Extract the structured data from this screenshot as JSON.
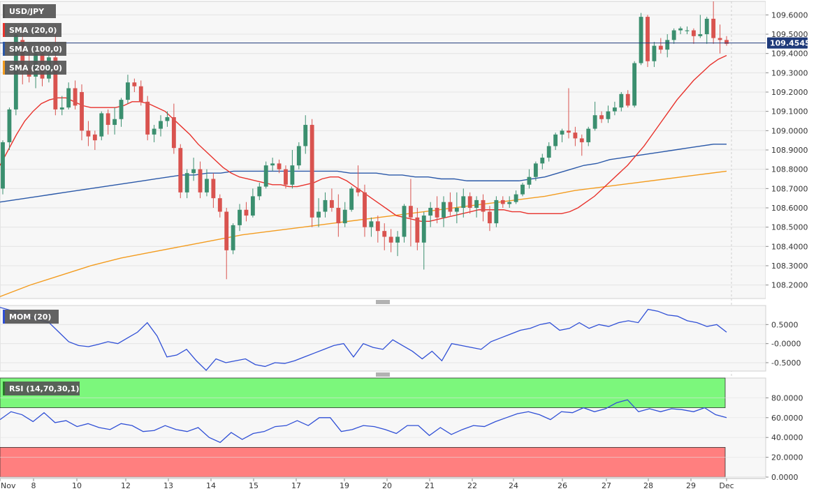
{
  "chart_data": {
    "type": "candlestick",
    "symbol": "USD/JPY",
    "colors": {
      "up": "#3b8f6f",
      "down": "#d9534f",
      "sma20": "#e8322c",
      "sma100": "#2a58a8",
      "sma200": "#f39c1f",
      "mom": "#2f4fd6",
      "rsi": "#2f4fd6",
      "rsi_overbought": "#7cf77c",
      "rsi_oversold": "#ff7f7f",
      "price_line": "#1f3a7a",
      "panel_bg": "#f7f7f7",
      "label_bg": "#555555"
    },
    "indicators": [
      {
        "name": "SMA (20,0)",
        "key": "sma20"
      },
      {
        "name": "SMA (100,0)",
        "key": "sma100"
      },
      {
        "name": "SMA (200,0)",
        "key": "sma200"
      }
    ],
    "current_price": "109.4545",
    "current_value": 109.4545,
    "price_axis": {
      "ylim": [
        108.13,
        109.67
      ],
      "ticks": [
        "109.6000",
        "109.5000",
        "109.4000",
        "109.3000",
        "109.2000",
        "109.1000",
        "109.0000",
        "108.9000",
        "108.8000",
        "108.7000",
        "108.6000",
        "108.5000",
        "108.4000",
        "108.3000",
        "108.2000"
      ]
    },
    "x_labels": [
      "Nov",
      "8",
      "10",
      "12",
      "13",
      "14",
      "15",
      "17",
      "19",
      "20",
      "21",
      "22",
      "24",
      "26",
      "27",
      "28",
      "29",
      "Dec"
    ],
    "candles": [
      {
        "o": 108.7,
        "h": 108.95,
        "l": 108.67,
        "c": 108.94
      },
      {
        "o": 108.94,
        "h": 109.12,
        "l": 108.9,
        "c": 109.11
      },
      {
        "o": 109.11,
        "h": 109.55,
        "l": 109.08,
        "c": 109.5
      },
      {
        "o": 109.47,
        "h": 109.55,
        "l": 109.24,
        "c": 109.32
      },
      {
        "o": 109.32,
        "h": 109.45,
        "l": 109.25,
        "c": 109.28
      },
      {
        "o": 109.28,
        "h": 109.42,
        "l": 109.22,
        "c": 109.4
      },
      {
        "o": 109.4,
        "h": 109.42,
        "l": 109.23,
        "c": 109.27
      },
      {
        "o": 109.27,
        "h": 109.4,
        "l": 109.25,
        "c": 109.38
      },
      {
        "o": 109.38,
        "h": 109.55,
        "l": 109.08,
        "c": 109.11
      },
      {
        "o": 109.11,
        "h": 109.18,
        "l": 109.08,
        "c": 109.12
      },
      {
        "o": 109.12,
        "h": 109.25,
        "l": 109.11,
        "c": 109.22
      },
      {
        "o": 109.22,
        "h": 109.26,
        "l": 109.11,
        "c": 109.13
      },
      {
        "o": 109.2,
        "h": 109.24,
        "l": 108.95,
        "c": 109.0
      },
      {
        "o": 109.0,
        "h": 109.05,
        "l": 108.92,
        "c": 108.97
      },
      {
        "o": 108.98,
        "h": 109.0,
        "l": 108.9,
        "c": 108.95
      },
      {
        "o": 108.97,
        "h": 109.1,
        "l": 108.95,
        "c": 109.09
      },
      {
        "o": 109.09,
        "h": 109.11,
        "l": 108.98,
        "c": 109.03
      },
      {
        "o": 109.03,
        "h": 109.12,
        "l": 108.98,
        "c": 109.06
      },
      {
        "o": 109.06,
        "h": 109.17,
        "l": 109.02,
        "c": 109.16
      },
      {
        "o": 109.16,
        "h": 109.29,
        "l": 109.14,
        "c": 109.25
      },
      {
        "o": 109.25,
        "h": 109.27,
        "l": 109.2,
        "c": 109.23
      },
      {
        "o": 109.23,
        "h": 109.26,
        "l": 109.13,
        "c": 109.15
      },
      {
        "o": 109.15,
        "h": 109.18,
        "l": 108.95,
        "c": 108.98
      },
      {
        "o": 108.98,
        "h": 109.03,
        "l": 108.94,
        "c": 109.01
      },
      {
        "o": 109.01,
        "h": 109.08,
        "l": 108.97,
        "c": 109.05
      },
      {
        "o": 109.05,
        "h": 109.1,
        "l": 109.02,
        "c": 109.07
      },
      {
        "o": 109.07,
        "h": 109.14,
        "l": 108.88,
        "c": 108.91
      },
      {
        "o": 108.91,
        "h": 108.93,
        "l": 108.65,
        "c": 108.68
      },
      {
        "o": 108.68,
        "h": 108.8,
        "l": 108.65,
        "c": 108.78
      },
      {
        "o": 108.78,
        "h": 108.86,
        "l": 108.74,
        "c": 108.8
      },
      {
        "o": 108.8,
        "h": 108.84,
        "l": 108.65,
        "c": 108.68
      },
      {
        "o": 108.68,
        "h": 108.8,
        "l": 108.66,
        "c": 108.75
      },
      {
        "o": 108.75,
        "h": 108.78,
        "l": 108.6,
        "c": 108.65
      },
      {
        "o": 108.65,
        "h": 108.67,
        "l": 108.55,
        "c": 108.58
      },
      {
        "o": 108.58,
        "h": 108.6,
        "l": 108.23,
        "c": 108.38
      },
      {
        "o": 108.38,
        "h": 108.52,
        "l": 108.36,
        "c": 108.51
      },
      {
        "o": 108.51,
        "h": 108.62,
        "l": 108.48,
        "c": 108.59
      },
      {
        "o": 108.59,
        "h": 108.63,
        "l": 108.53,
        "c": 108.56
      },
      {
        "o": 108.56,
        "h": 108.7,
        "l": 108.55,
        "c": 108.66
      },
      {
        "o": 108.66,
        "h": 108.73,
        "l": 108.64,
        "c": 108.71
      },
      {
        "o": 108.71,
        "h": 108.84,
        "l": 108.7,
        "c": 108.82
      },
      {
        "o": 108.82,
        "h": 108.86,
        "l": 108.79,
        "c": 108.83
      },
      {
        "o": 108.83,
        "h": 108.85,
        "l": 108.78,
        "c": 108.8
      },
      {
        "o": 108.8,
        "h": 108.82,
        "l": 108.7,
        "c": 108.72
      },
      {
        "o": 108.72,
        "h": 108.9,
        "l": 108.7,
        "c": 108.82
      },
      {
        "o": 108.82,
        "h": 108.94,
        "l": 108.8,
        "c": 108.92
      },
      {
        "o": 108.92,
        "h": 109.08,
        "l": 108.88,
        "c": 109.03
      },
      {
        "o": 109.03,
        "h": 109.06,
        "l": 108.5,
        "c": 108.55
      },
      {
        "o": 108.55,
        "h": 108.65,
        "l": 108.5,
        "c": 108.58
      },
      {
        "o": 108.58,
        "h": 108.68,
        "l": 108.55,
        "c": 108.64
      },
      {
        "o": 108.64,
        "h": 108.7,
        "l": 108.58,
        "c": 108.6
      },
      {
        "o": 108.6,
        "h": 108.67,
        "l": 108.45,
        "c": 108.52
      },
      {
        "o": 108.52,
        "h": 108.63,
        "l": 108.5,
        "c": 108.59
      },
      {
        "o": 108.59,
        "h": 108.71,
        "l": 108.58,
        "c": 108.7
      },
      {
        "o": 108.7,
        "h": 108.82,
        "l": 108.66,
        "c": 108.68
      },
      {
        "o": 108.68,
        "h": 108.72,
        "l": 108.45,
        "c": 108.5
      },
      {
        "o": 108.5,
        "h": 108.55,
        "l": 108.45,
        "c": 108.53
      },
      {
        "o": 108.53,
        "h": 108.56,
        "l": 108.42,
        "c": 108.48
      },
      {
        "o": 108.48,
        "h": 108.52,
        "l": 108.38,
        "c": 108.45
      },
      {
        "o": 108.45,
        "h": 108.49,
        "l": 108.37,
        "c": 108.42
      },
      {
        "o": 108.42,
        "h": 108.48,
        "l": 108.35,
        "c": 108.45
      },
      {
        "o": 108.45,
        "h": 108.62,
        "l": 108.42,
        "c": 108.61
      },
      {
        "o": 108.61,
        "h": 108.75,
        "l": 108.4,
        "c": 108.55
      },
      {
        "o": 108.55,
        "h": 108.6,
        "l": 108.38,
        "c": 108.42
      },
      {
        "o": 108.42,
        "h": 108.58,
        "l": 108.28,
        "c": 108.56
      },
      {
        "o": 108.56,
        "h": 108.63,
        "l": 108.5,
        "c": 108.6
      },
      {
        "o": 108.6,
        "h": 108.66,
        "l": 108.52,
        "c": 108.55
      },
      {
        "o": 108.55,
        "h": 108.66,
        "l": 108.5,
        "c": 108.63
      },
      {
        "o": 108.63,
        "h": 108.68,
        "l": 108.56,
        "c": 108.58
      },
      {
        "o": 108.58,
        "h": 108.68,
        "l": 108.52,
        "c": 108.6
      },
      {
        "o": 108.6,
        "h": 108.7,
        "l": 108.55,
        "c": 108.66
      },
      {
        "o": 108.66,
        "h": 108.68,
        "l": 108.57,
        "c": 108.6
      },
      {
        "o": 108.6,
        "h": 108.66,
        "l": 108.55,
        "c": 108.64
      },
      {
        "o": 108.64,
        "h": 108.67,
        "l": 108.53,
        "c": 108.58
      },
      {
        "o": 108.58,
        "h": 108.61,
        "l": 108.48,
        "c": 108.52
      },
      {
        "o": 108.52,
        "h": 108.66,
        "l": 108.5,
        "c": 108.64
      },
      {
        "o": 108.64,
        "h": 108.66,
        "l": 108.6,
        "c": 108.62
      },
      {
        "o": 108.62,
        "h": 108.66,
        "l": 108.6,
        "c": 108.63
      },
      {
        "o": 108.63,
        "h": 108.69,
        "l": 108.62,
        "c": 108.67
      },
      {
        "o": 108.67,
        "h": 108.73,
        "l": 108.66,
        "c": 108.72
      },
      {
        "o": 108.72,
        "h": 108.8,
        "l": 108.7,
        "c": 108.76
      },
      {
        "o": 108.76,
        "h": 108.84,
        "l": 108.74,
        "c": 108.83
      },
      {
        "o": 108.83,
        "h": 108.88,
        "l": 108.8,
        "c": 108.86
      },
      {
        "o": 108.86,
        "h": 108.94,
        "l": 108.84,
        "c": 108.92
      },
      {
        "o": 108.92,
        "h": 108.99,
        "l": 108.9,
        "c": 108.98
      },
      {
        "o": 108.98,
        "h": 109.01,
        "l": 108.94,
        "c": 109.0
      },
      {
        "o": 109.0,
        "h": 109.22,
        "l": 108.96,
        "c": 108.99
      },
      {
        "o": 108.99,
        "h": 109.02,
        "l": 108.92,
        "c": 108.96
      },
      {
        "o": 108.96,
        "h": 108.98,
        "l": 108.87,
        "c": 108.94
      },
      {
        "o": 108.94,
        "h": 109.02,
        "l": 108.92,
        "c": 109.01
      },
      {
        "o": 109.01,
        "h": 109.15,
        "l": 109.0,
        "c": 109.08
      },
      {
        "o": 109.08,
        "h": 109.1,
        "l": 109.04,
        "c": 109.06
      },
      {
        "o": 109.06,
        "h": 109.13,
        "l": 109.04,
        "c": 109.1
      },
      {
        "o": 109.1,
        "h": 109.15,
        "l": 109.08,
        "c": 109.12
      },
      {
        "o": 109.12,
        "h": 109.2,
        "l": 109.1,
        "c": 109.19
      },
      {
        "o": 109.19,
        "h": 109.21,
        "l": 109.12,
        "c": 109.13
      },
      {
        "o": 109.13,
        "h": 109.36,
        "l": 109.12,
        "c": 109.35
      },
      {
        "o": 109.35,
        "h": 109.61,
        "l": 109.34,
        "c": 109.59
      },
      {
        "o": 109.59,
        "h": 109.6,
        "l": 109.33,
        "c": 109.36
      },
      {
        "o": 109.36,
        "h": 109.46,
        "l": 109.33,
        "c": 109.44
      },
      {
        "o": 109.44,
        "h": 109.48,
        "l": 109.4,
        "c": 109.42
      },
      {
        "o": 109.42,
        "h": 109.5,
        "l": 109.38,
        "c": 109.47
      },
      {
        "o": 109.47,
        "h": 109.53,
        "l": 109.45,
        "c": 109.52
      },
      {
        "o": 109.52,
        "h": 109.54,
        "l": 109.5,
        "c": 109.53
      },
      {
        "o": 109.52,
        "h": 109.54,
        "l": 109.5,
        "c": 109.52
      },
      {
        "o": 109.52,
        "h": 109.53,
        "l": 109.45,
        "c": 109.49
      },
      {
        "o": 109.49,
        "h": 109.6,
        "l": 109.48,
        "c": 109.5
      },
      {
        "o": 109.5,
        "h": 109.59,
        "l": 109.45,
        "c": 109.58
      },
      {
        "o": 109.58,
        "h": 109.67,
        "l": 109.45,
        "c": 109.48
      },
      {
        "o": 109.48,
        "h": 109.55,
        "l": 109.4,
        "c": 109.47
      },
      {
        "o": 109.47,
        "h": 109.49,
        "l": 109.44,
        "c": 109.45
      }
    ],
    "sma20": [
      108.82,
      108.9,
      108.98,
      109.05,
      109.1,
      109.14,
      109.16,
      109.17,
      109.17,
      109.15,
      109.13,
      109.12,
      109.12,
      109.12,
      109.12,
      109.13,
      109.15,
      109.15,
      109.14,
      109.12,
      109.1,
      109.06,
      109.02,
      108.98,
      108.93,
      108.89,
      108.85,
      108.81,
      108.78,
      108.76,
      108.75,
      108.74,
      108.73,
      108.72,
      108.72,
      108.71,
      108.71,
      108.72,
      108.73,
      108.75,
      108.76,
      108.76,
      108.74,
      108.71,
      108.68,
      108.65,
      108.62,
      108.59,
      108.56,
      108.55,
      108.54,
      108.53,
      108.53,
      108.54,
      108.55,
      108.56,
      108.57,
      108.58,
      108.59,
      108.59,
      108.59,
      108.59,
      108.58,
      108.58,
      108.57,
      108.57,
      108.57,
      108.57,
      108.57,
      108.58,
      108.6,
      108.63,
      108.66,
      108.7,
      108.74,
      108.78,
      108.82,
      108.87,
      108.92,
      108.98,
      109.04,
      109.1,
      109.16,
      109.21,
      109.26,
      109.3,
      109.34,
      109.37,
      109.39
    ],
    "sma20_start": 0,
    "sma100": [
      108.63,
      108.64,
      108.65,
      108.66,
      108.67,
      108.68,
      108.69,
      108.7,
      108.71,
      108.72,
      108.73,
      108.74,
      108.75,
      108.76,
      108.77,
      108.77,
      108.78,
      108.78,
      108.79,
      108.79,
      108.79,
      108.79,
      108.79,
      108.79,
      108.79,
      108.79,
      108.79,
      108.78,
      108.78,
      108.78,
      108.77,
      108.77,
      108.76,
      108.76,
      108.75,
      108.75,
      108.74,
      108.74,
      108.74,
      108.74,
      108.74,
      108.75,
      108.76,
      108.78,
      108.8,
      108.82,
      108.83,
      108.85,
      108.86,
      108.87,
      108.88,
      108.89,
      108.9,
      108.91,
      108.92,
      108.93,
      108.93
    ],
    "sma100_idx": [
      0,
      4,
      8,
      12,
      16,
      20,
      24,
      28,
      32,
      36,
      40,
      44,
      48,
      52,
      56,
      60,
      64,
      68,
      72,
      76,
      80,
      84,
      88,
      92,
      96,
      100,
      104,
      108,
      110,
      112,
      114,
      116,
      118,
      120,
      122,
      124,
      126,
      128,
      130,
      132,
      134,
      136,
      138,
      140,
      142,
      144,
      146,
      148,
      150,
      152,
      154,
      156,
      158,
      160,
      162,
      164,
      166
    ],
    "sma200": [
      108.14,
      108.2,
      108.25,
      108.3,
      108.34,
      108.37,
      108.4,
      108.43,
      108.46,
      108.48,
      108.5,
      108.52,
      108.54,
      108.56,
      108.58,
      108.6,
      108.62,
      108.64,
      108.66,
      108.69,
      108.71,
      108.73,
      108.75,
      108.77,
      108.79
    ],
    "mom_axis": {
      "ylim": [
        -0.72,
        1.0
      ],
      "ticks": [
        "0.5000",
        "-0.0000",
        "-0.5000"
      ]
    },
    "mom": [
      0.95,
      0.88,
      0.78,
      0.7,
      0.62,
      0.55,
      0.3,
      0.05,
      -0.05,
      -0.08,
      -0.02,
      0.05,
      0.0,
      0.15,
      0.3,
      0.55,
      0.2,
      -0.35,
      -0.3,
      -0.15,
      -0.45,
      -0.7,
      -0.4,
      -0.5,
      -0.45,
      -0.4,
      -0.55,
      -0.6,
      -0.5,
      -0.52,
      -0.45,
      -0.35,
      -0.25,
      -0.15,
      -0.05,
      0.0,
      -0.35,
      0.0,
      -0.1,
      -0.15,
      0.1,
      -0.05,
      -0.2,
      -0.4,
      -0.2,
      -0.45,
      0.0,
      -0.05,
      -0.1,
      -0.15,
      0.05,
      0.15,
      0.25,
      0.35,
      0.4,
      0.5,
      0.55,
      0.35,
      0.4,
      0.55,
      0.4,
      0.5,
      0.45,
      0.55,
      0.6,
      0.55,
      0.9,
      0.85,
      0.75,
      0.72,
      0.6,
      0.55,
      0.45,
      0.5,
      0.3
    ],
    "rsi_axis": {
      "ylim": [
        0,
        100
      ],
      "ticks": [
        "80.0000",
        "60.0000",
        "40.0000",
        "20.0000",
        "0.0000"
      ],
      "overbought": 70,
      "oversold": 30
    },
    "rsi": [
      58,
      66,
      63,
      56,
      65,
      55,
      57,
      51,
      54,
      50,
      48,
      54,
      52,
      46,
      47,
      52,
      48,
      46,
      50,
      40,
      35,
      45,
      38,
      44,
      46,
      51,
      52,
      57,
      52,
      60,
      60,
      46,
      48,
      52,
      51,
      48,
      44,
      52,
      52,
      42,
      50,
      43,
      48,
      52,
      51,
      56,
      60,
      64,
      66,
      63,
      58,
      66,
      65,
      70,
      66,
      69,
      75,
      78,
      66,
      69,
      66,
      69,
      68,
      66,
      70,
      63,
      60
    ],
    "labels": {
      "mom": "MOM (20)",
      "rsi": "RSI (14,70,30,1)"
    }
  }
}
